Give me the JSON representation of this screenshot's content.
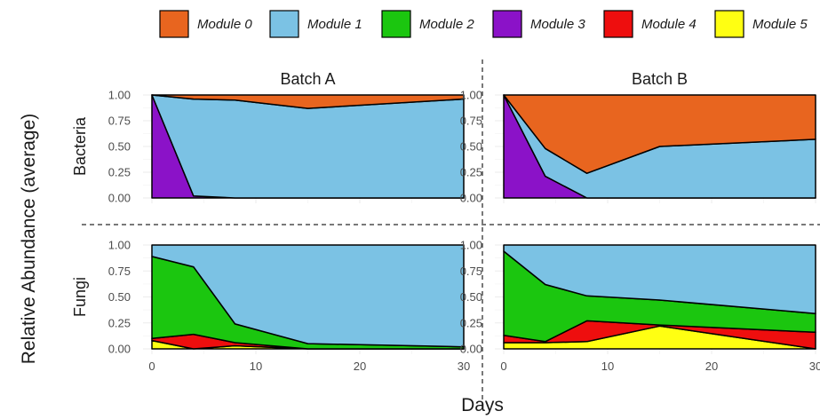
{
  "chart_data": {
    "type": "area",
    "xlabel": "Days",
    "ylabel": "Relative Abundance (average)",
    "xlim": [
      0,
      30
    ],
    "ylim": [
      0,
      1
    ],
    "x_ticks": [
      0,
      10,
      20,
      30
    ],
    "y_ticks": [
      "0.00",
      "0.25",
      "0.50",
      "0.75",
      "1.00"
    ],
    "legend_position": "top",
    "legend": [
      {
        "name": "Module 0",
        "color": "#E8651F"
      },
      {
        "name": "Module 1",
        "color": "#7BC2E4"
      },
      {
        "name": "Module 2",
        "color": "#1BC60F"
      },
      {
        "name": "Module 3",
        "color": "#8B12C8"
      },
      {
        "name": "Module 4",
        "color": "#EE0E0E"
      },
      {
        "name": "Module 5",
        "color": "#FFFF12"
      }
    ],
    "columns": [
      "Batch A",
      "Batch B"
    ],
    "rows": [
      "Bacteria",
      "Fungi"
    ],
    "panels": [
      {
        "row": "Bacteria",
        "column": "Batch A",
        "x": [
          0,
          4,
          8,
          15,
          30
        ],
        "series": [
          {
            "name": "Module 3",
            "values": [
              1.0,
              0.02,
              0.0,
              0.0,
              0.0
            ]
          },
          {
            "name": "Module 1",
            "values": [
              0.0,
              0.94,
              0.95,
              0.87,
              0.96
            ]
          },
          {
            "name": "Module 0",
            "values": [
              0.0,
              0.04,
              0.05,
              0.13,
              0.04
            ]
          }
        ]
      },
      {
        "row": "Bacteria",
        "column": "Batch B",
        "x": [
          0,
          4,
          8,
          15,
          30
        ],
        "series": [
          {
            "name": "Module 3",
            "values": [
              1.0,
              0.21,
              0.0,
              0.0,
              0.0
            ]
          },
          {
            "name": "Module 1",
            "values": [
              0.0,
              0.27,
              0.24,
              0.5,
              0.57
            ]
          },
          {
            "name": "Module 0",
            "values": [
              0.0,
              0.52,
              0.76,
              0.5,
              0.43
            ]
          }
        ]
      },
      {
        "row": "Fungi",
        "column": "Batch A",
        "x": [
          0,
          4,
          8,
          15,
          30
        ],
        "series": [
          {
            "name": "Module 5",
            "values": [
              0.08,
              0.0,
              0.03,
              0.0,
              0.0
            ]
          },
          {
            "name": "Module 4",
            "values": [
              0.02,
              0.14,
              0.03,
              0.0,
              0.0
            ]
          },
          {
            "name": "Module 2",
            "values": [
              0.79,
              0.65,
              0.18,
              0.05,
              0.02
            ]
          },
          {
            "name": "Module 1",
            "values": [
              0.11,
              0.21,
              0.76,
              0.95,
              0.98
            ]
          }
        ]
      },
      {
        "row": "Fungi",
        "column": "Batch B",
        "x": [
          0,
          4,
          8,
          15,
          30
        ],
        "series": [
          {
            "name": "Module 5",
            "values": [
              0.06,
              0.06,
              0.07,
              0.22,
              0.0
            ]
          },
          {
            "name": "Module 4",
            "values": [
              0.07,
              0.01,
              0.2,
              0.01,
              0.16
            ]
          },
          {
            "name": "Module 2",
            "values": [
              0.81,
              0.55,
              0.24,
              0.24,
              0.18
            ]
          },
          {
            "name": "Module 1",
            "values": [
              0.06,
              0.38,
              0.49,
              0.53,
              0.66
            ]
          }
        ]
      }
    ]
  }
}
